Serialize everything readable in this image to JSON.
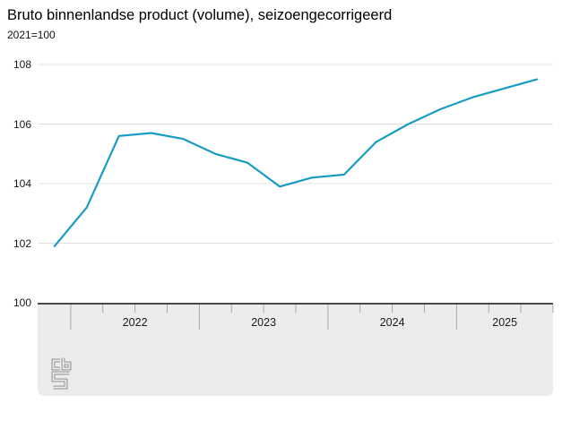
{
  "page": {
    "title": "Bruto binnenlandse product (volume), seizoengecorrigeerd",
    "subtitle": "2021=100"
  },
  "chart_data": {
    "type": "line",
    "title": "Bruto binnenlandse product (volume), seizoengecorrigeerd",
    "unit_label": "2021=100",
    "categories": [
      "2021 Q4",
      "2022 Q1",
      "2022 Q2",
      "2022 Q3",
      "2022 Q4",
      "2023 Q1",
      "2023 Q2",
      "2023 Q3",
      "2023 Q4",
      "2024 Q1",
      "2024 Q2",
      "2024 Q3",
      "2024 Q4",
      "2025 Q1",
      "2025 Q2",
      "2025 Q3"
    ],
    "series": [
      {
        "name": "Bruto binnenlandse product (volume), seizoengecorrigeerd",
        "values": [
          101.9,
          103.2,
          105.6,
          105.7,
          105.5,
          105.0,
          104.7,
          103.9,
          104.2,
          104.3,
          105.4,
          106.0,
          106.5,
          106.9,
          107.2,
          107.5
        ]
      }
    ],
    "x_year_labels": [
      "2022",
      "2023",
      "2024",
      "2025"
    ],
    "x_domain_years": [
      2021.75,
      2025.75
    ],
    "ylim": [
      100,
      108
    ],
    "yticks": [
      100,
      102,
      104,
      106,
      108
    ],
    "grid": true,
    "legend": "none",
    "line_color": "#189cc4",
    "grid_color": "#e0e0e0",
    "axis_line_color": "#4a4a4a",
    "tick_color": "#a8a8a8",
    "footer_bg": "#ececec",
    "logo": "cbs-logo"
  }
}
